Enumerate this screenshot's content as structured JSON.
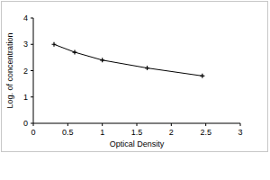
{
  "chart_data": {
    "type": "line",
    "x_label": "Optical Density",
    "y_label": "Log. of concentration",
    "x": [
      0.3,
      0.6,
      1.0,
      1.65,
      2.45
    ],
    "values": [
      3.0,
      2.7,
      2.4,
      2.1,
      1.8
    ],
    "color": "#000000",
    "marker": "plus",
    "xlim": [
      0,
      3
    ],
    "xticks": [
      0,
      0.5,
      1,
      1.5,
      2,
      2.5,
      3
    ],
    "ylim": [
      0,
      4
    ],
    "yticks": [
      0,
      1,
      2,
      3,
      4
    ],
    "grid": false
  }
}
